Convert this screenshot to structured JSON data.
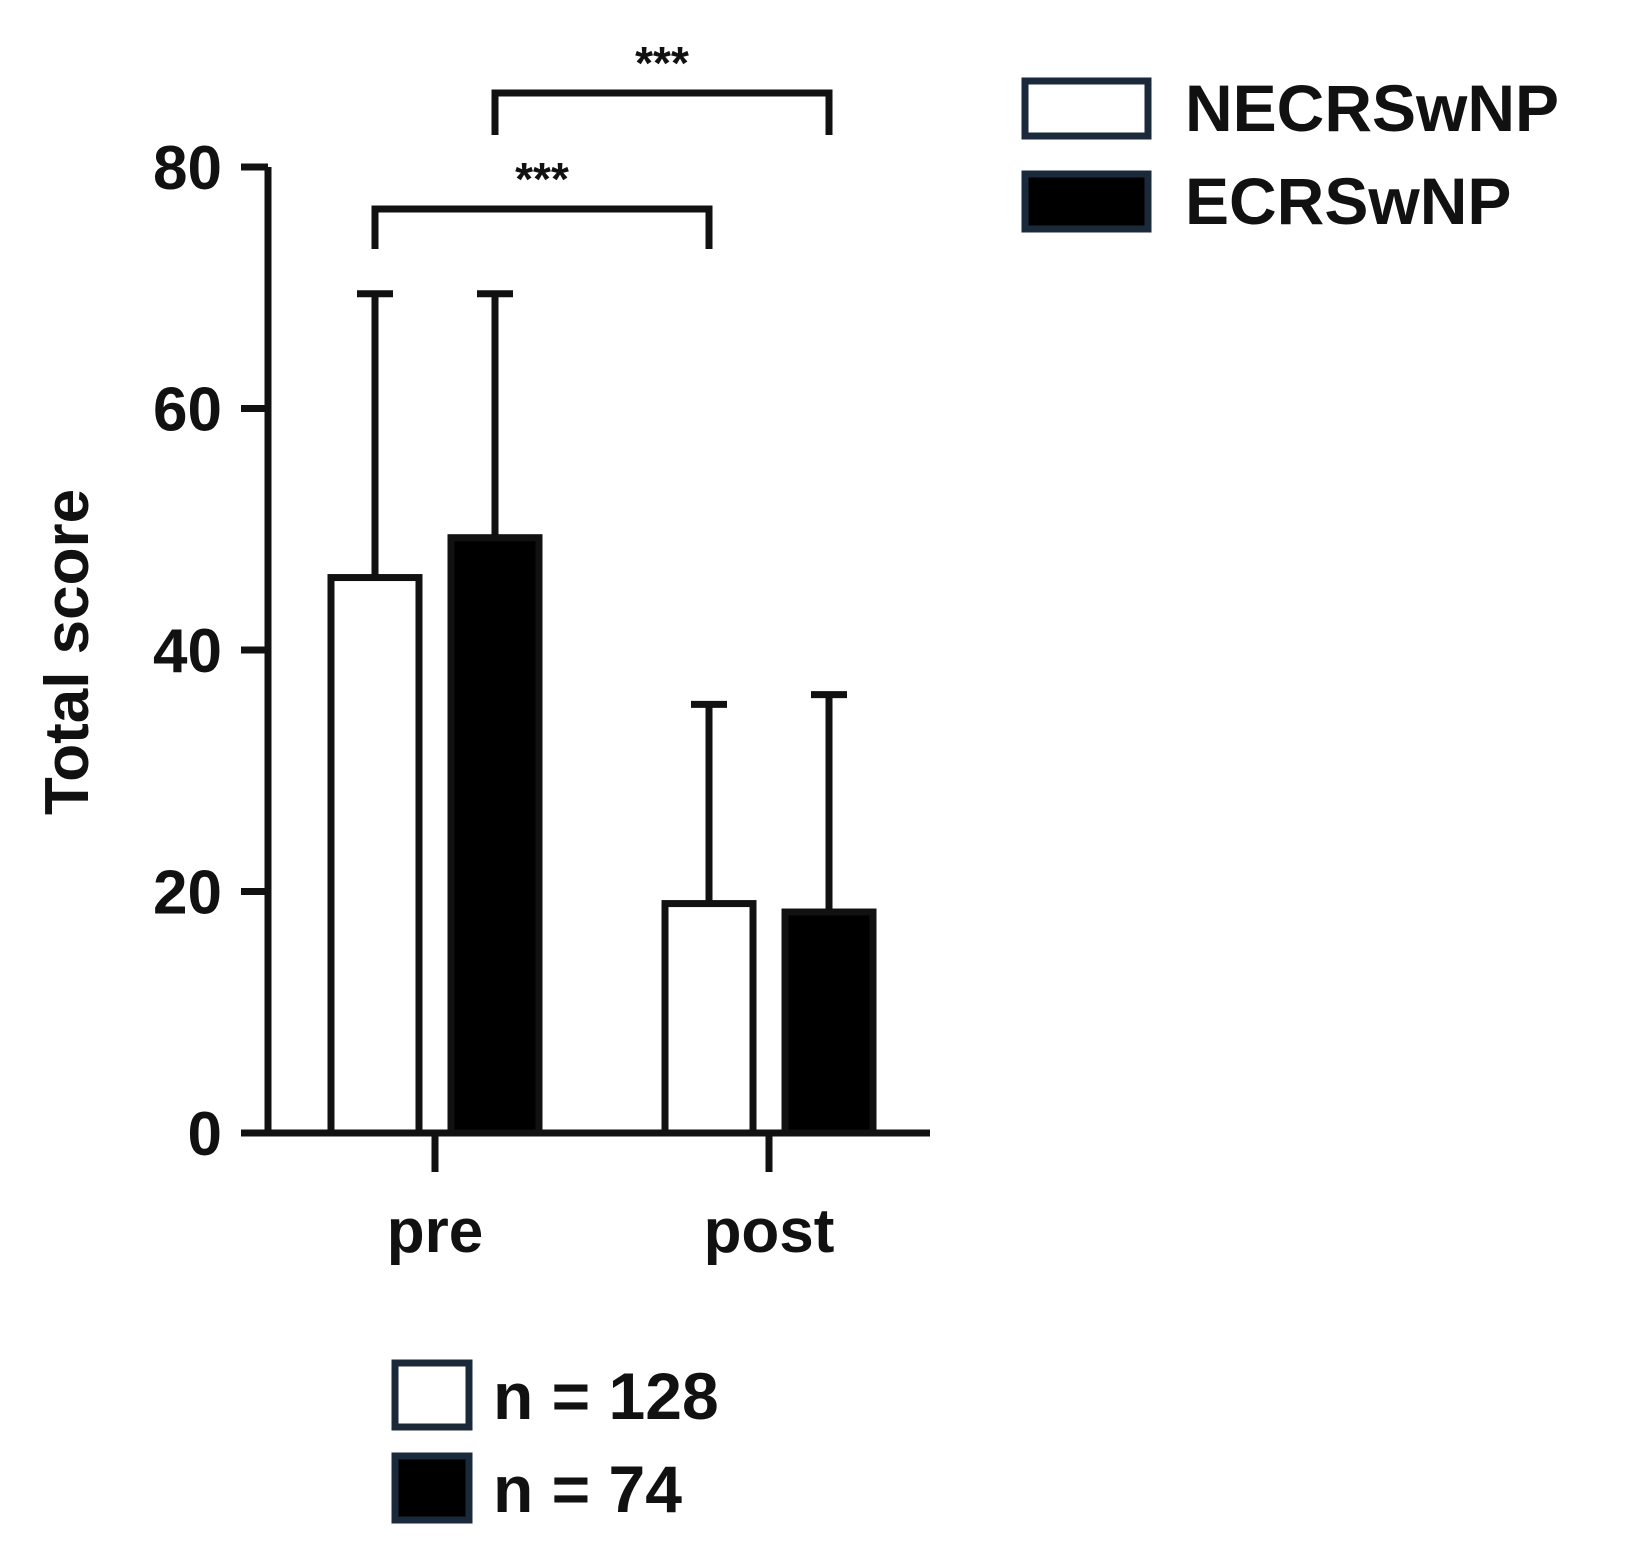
{
  "chart_data": {
    "type": "bar",
    "title": "",
    "xlabel": "",
    "ylabel": "Total score",
    "ylim": [
      0,
      80
    ],
    "yticks": [
      "0",
      "20",
      "40",
      "60",
      "80"
    ],
    "categories": [
      "pre",
      "post"
    ],
    "series": [
      {
        "name": "NECRSwNP",
        "values": [
          46,
          19
        ],
        "error": [
          23.5,
          16.5
        ],
        "fill": "#ffffff"
      },
      {
        "name": "ECRSwNP",
        "values": [
          49.3,
          18.3
        ],
        "error": [
          20.2,
          18
        ],
        "fill": "#000000"
      }
    ],
    "significance": [
      {
        "label": "***",
        "from": "NECRSwNP pre",
        "to": "NECRSwNP post"
      },
      {
        "label": "***",
        "from": "ECRSwNP pre",
        "to": "ECRSwNP post"
      }
    ],
    "legend_position": "top-right",
    "sample_sizes": [
      {
        "label": "n = 128",
        "fill": "#ffffff"
      },
      {
        "label": "n = 74",
        "fill": "#000000"
      }
    ],
    "grid": false
  },
  "colors": {
    "outline": "#111111",
    "legend_outline": "#1b2a3a"
  }
}
